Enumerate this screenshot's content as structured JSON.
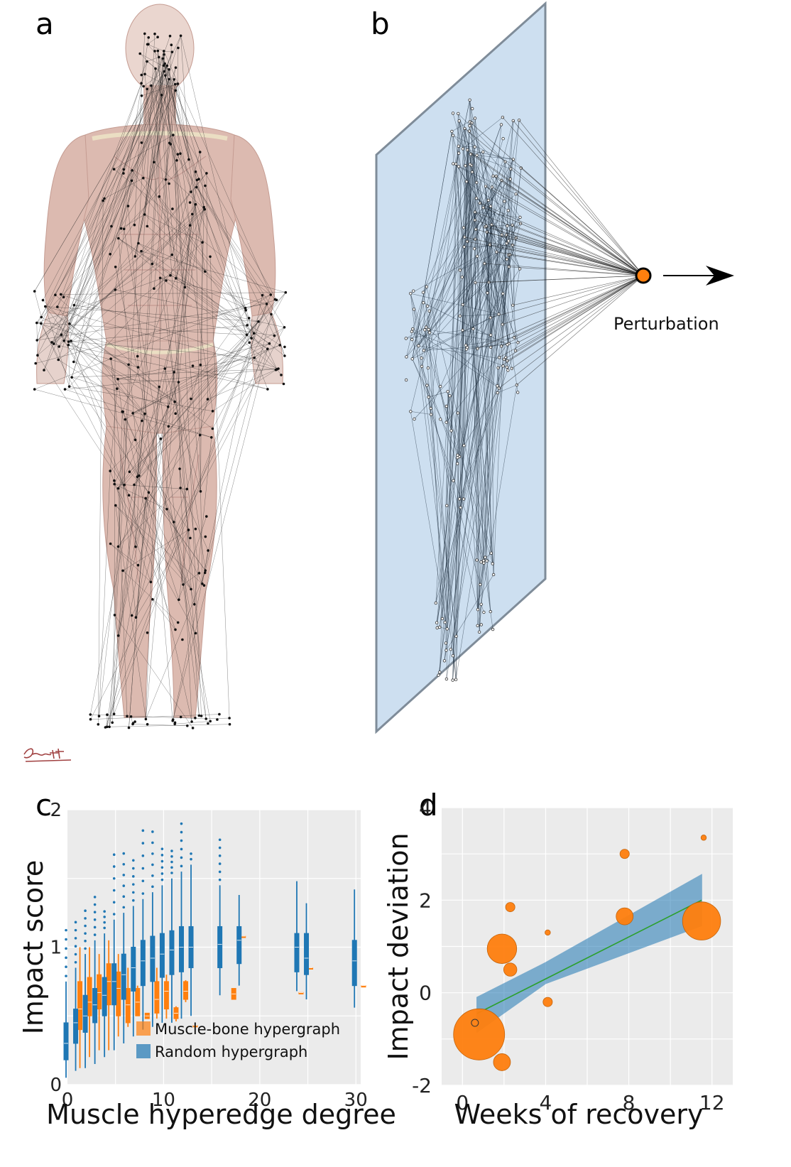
{
  "panels": {
    "a": {
      "letter": "a"
    },
    "b": {
      "letter": "b",
      "perturbation_label": "Perturbation",
      "colors": {
        "plane": "#cddff0",
        "plane_edge": "#7f8c99",
        "perturbation_node": "#ff7f0e"
      }
    },
    "c": {
      "letter": "c"
    },
    "d": {
      "letter": "d"
    }
  },
  "signature": {
    "text": "Bennett"
  },
  "chart_data": [
    {
      "type": "box",
      "panel": "c",
      "title": "",
      "xlabel": "Muscle hyperedge degree",
      "ylabel": "Impact score",
      "xlim": [
        0,
        30.5
      ],
      "ylim": [
        0,
        2
      ],
      "xticks": [
        0,
        10,
        20,
        30
      ],
      "yticks": [
        0,
        1,
        2
      ],
      "grid": true,
      "legend_position": "bottom-right",
      "series": [
        {
          "name": "Muscle-bone hypergraph",
          "color": "#ff7f0e",
          "boxes": [
            {
              "x": 1,
              "median": 0.55,
              "q1": 0.4,
              "q3": 0.75,
              "lo": 0.12,
              "hi": 1.0
            },
            {
              "x": 2,
              "median": 0.6,
              "q1": 0.5,
              "q3": 0.78,
              "lo": 0.2,
              "hi": 1.0
            },
            {
              "x": 3,
              "median": 0.67,
              "q1": 0.55,
              "q3": 0.8,
              "lo": 0.25,
              "hi": 0.95
            },
            {
              "x": 4,
              "median": 0.75,
              "q1": 0.58,
              "q3": 0.88,
              "lo": 0.25,
              "hi": 1.05
            },
            {
              "x": 5,
              "median": 0.7,
              "q1": 0.5,
              "q3": 0.82,
              "lo": 0.35,
              "hi": 0.95
            },
            {
              "x": 6,
              "median": 0.58,
              "q1": 0.45,
              "q3": 0.7,
              "lo": 0.42,
              "hi": 0.85
            },
            {
              "x": 7,
              "median": 0.6,
              "q1": 0.5,
              "q3": 0.7,
              "lo": 0.5,
              "hi": 0.72
            },
            {
              "x": 8,
              "median": 0.5,
              "q1": 0.48,
              "q3": 0.52,
              "lo": 0.48,
              "hi": 0.52
            },
            {
              "x": 9,
              "median": 0.62,
              "q1": 0.52,
              "q3": 0.75,
              "lo": 0.48,
              "hi": 0.85
            },
            {
              "x": 10,
              "median": 0.68,
              "q1": 0.55,
              "q3": 0.75,
              "lo": 0.48,
              "hi": 0.8
            },
            {
              "x": 11,
              "median": 0.52,
              "q1": 0.48,
              "q3": 0.56,
              "lo": 0.46,
              "hi": 0.57
            },
            {
              "x": 12,
              "median": 0.68,
              "q1": 0.62,
              "q3": 0.75,
              "lo": 0.6,
              "hi": 0.76
            },
            {
              "x": 13,
              "median": 0.43,
              "q1": 0.43,
              "q3": 0.43,
              "lo": 0.43,
              "hi": 0.43
            },
            {
              "x": 17,
              "median": 0.66,
              "q1": 0.62,
              "q3": 0.7,
              "lo": 0.62,
              "hi": 0.7
            },
            {
              "x": 18,
              "median": 1.08,
              "q1": 1.08,
              "q3": 1.08,
              "lo": 1.08,
              "hi": 1.08
            },
            {
              "x": 24,
              "median": 0.67,
              "q1": 0.67,
              "q3": 0.67,
              "lo": 0.67,
              "hi": 0.67
            },
            {
              "x": 25,
              "median": 0.85,
              "q1": 0.85,
              "q3": 0.85,
              "lo": 0.85,
              "hi": 0.85
            },
            {
              "x": 30.5,
              "median": 0.72,
              "q1": 0.72,
              "q3": 0.72,
              "lo": 0.72,
              "hi": 0.72
            }
          ]
        },
        {
          "name": "Random hypergraph",
          "color": "#1f77b4",
          "boxes": [
            {
              "x": 0,
              "median": 0.3,
              "q1": 0.18,
              "q3": 0.45,
              "lo": 0.05,
              "hi": 0.75,
              "outliers_max": 1.15
            },
            {
              "x": 1,
              "median": 0.45,
              "q1": 0.3,
              "q3": 0.55,
              "lo": 0.1,
              "hi": 0.85,
              "outliers_max": 1.2
            },
            {
              "x": 2,
              "median": 0.5,
              "q1": 0.38,
              "q3": 0.65,
              "lo": 0.12,
              "hi": 0.95,
              "outliers_max": 1.28
            },
            {
              "x": 3,
              "median": 0.58,
              "q1": 0.45,
              "q3": 0.7,
              "lo": 0.15,
              "hi": 1.05,
              "outliers_max": 1.38
            },
            {
              "x": 4,
              "median": 0.65,
              "q1": 0.5,
              "q3": 0.78,
              "lo": 0.2,
              "hi": 1.1,
              "outliers_max": 1.3
            },
            {
              "x": 5,
              "median": 0.75,
              "q1": 0.58,
              "q3": 0.88,
              "lo": 0.25,
              "hi": 1.2,
              "outliers_max": 1.72
            },
            {
              "x": 6,
              "median": 0.8,
              "q1": 0.62,
              "q3": 0.95,
              "lo": 0.3,
              "hi": 1.25,
              "outliers_max": 1.72
            },
            {
              "x": 7,
              "median": 0.85,
              "q1": 0.68,
              "q3": 1.0,
              "lo": 0.35,
              "hi": 1.3,
              "outliers_max": 1.65
            },
            {
              "x": 8,
              "median": 0.9,
              "q1": 0.72,
              "q3": 1.05,
              "lo": 0.4,
              "hi": 1.35,
              "outliers_max": 1.9
            },
            {
              "x": 9,
              "median": 0.92,
              "q1": 0.75,
              "q3": 1.08,
              "lo": 0.42,
              "hi": 1.4,
              "outliers_max": 1.88
            },
            {
              "x": 10,
              "median": 0.95,
              "q1": 0.78,
              "q3": 1.1,
              "lo": 0.45,
              "hi": 1.45,
              "outliers_max": 1.72
            },
            {
              "x": 11,
              "median": 0.98,
              "q1": 0.8,
              "q3": 1.12,
              "lo": 0.45,
              "hi": 1.5,
              "outliers_max": 1.72
            },
            {
              "x": 12,
              "median": 1.0,
              "q1": 0.82,
              "q3": 1.15,
              "lo": 0.48,
              "hi": 1.55,
              "outliers_max": 1.92
            },
            {
              "x": 13,
              "median": 1.0,
              "q1": 0.85,
              "q3": 1.15,
              "lo": 0.5,
              "hi": 1.6,
              "outliers_max": 1.72
            },
            {
              "x": 16,
              "median": 1.02,
              "q1": 0.85,
              "q3": 1.15,
              "lo": 0.65,
              "hi": 1.45,
              "outliers_max": 1.8
            },
            {
              "x": 18,
              "median": 1.05,
              "q1": 0.88,
              "q3": 1.15,
              "lo": 0.72,
              "hi": 1.38
            },
            {
              "x": 24,
              "median": 1.0,
              "q1": 0.82,
              "q3": 1.1,
              "lo": 0.68,
              "hi": 1.48
            },
            {
              "x": 25,
              "median": 0.92,
              "q1": 0.8,
              "q3": 1.1,
              "lo": 0.62,
              "hi": 1.32
            },
            {
              "x": 30,
              "median": 0.9,
              "q1": 0.72,
              "q3": 1.05,
              "lo": 0.56,
              "hi": 1.42
            }
          ]
        }
      ]
    },
    {
      "type": "scatter",
      "panel": "d",
      "title": "",
      "xlabel": "Weeks of recovery",
      "ylabel": "Impact deviation",
      "xlim": [
        -1,
        13
      ],
      "ylim": [
        -2,
        4
      ],
      "xticks": [
        0,
        4,
        8,
        12
      ],
      "yticks": [
        4,
        2,
        0,
        -2
      ],
      "grid": true,
      "points": [
        {
          "x": 0.8,
          "y": -0.9,
          "size": 9
        },
        {
          "x": 0.6,
          "y": -0.65,
          "size": 0.3,
          "style": "hollow"
        },
        {
          "x": 1.9,
          "y": 0.95,
          "size": 3
        },
        {
          "x": 2.3,
          "y": 0.5,
          "size": 0.6
        },
        {
          "x": 2.3,
          "y": 1.85,
          "size": 0.3
        },
        {
          "x": 1.9,
          "y": -1.5,
          "size": 1
        },
        {
          "x": 4.1,
          "y": 1.3,
          "size": 0.1
        },
        {
          "x": 4.1,
          "y": -0.2,
          "size": 0.3
        },
        {
          "x": 7.8,
          "y": 3.0,
          "size": 0.3
        },
        {
          "x": 7.8,
          "y": 1.65,
          "size": 1
        },
        {
          "x": 11.6,
          "y": 3.35,
          "size": 0.1
        },
        {
          "x": 11.5,
          "y": 1.55,
          "size": 5
        }
      ],
      "fit_line": {
        "x": [
          0.7,
          11.5
        ],
        "y": [
          -0.45,
          2.0
        ],
        "color": "#2ca02c"
      },
      "confidence_band": {
        "x": [
          0.7,
          4.0,
          11.5
        ],
        "upper": [
          -0.1,
          0.65,
          2.55
        ],
        "lower": [
          -0.85,
          0.2,
          1.45
        ],
        "color": "#1f77b4"
      }
    }
  ]
}
